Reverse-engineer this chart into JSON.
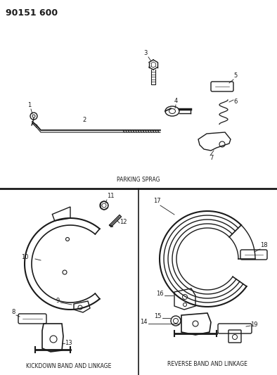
{
  "title": "90151 600",
  "parking_sprag_label": "PARKING SPRAG",
  "kickdown_label": "KICKDOWN BAND AND LINKAGE",
  "reverse_label": "REVERSE BAND AND LINKAGE",
  "bg_color": "#ffffff",
  "line_color": "#1a1a1a",
  "text_color": "#1a1a1a",
  "fig_w": 3.94,
  "fig_h": 5.33,
  "dpi": 100
}
